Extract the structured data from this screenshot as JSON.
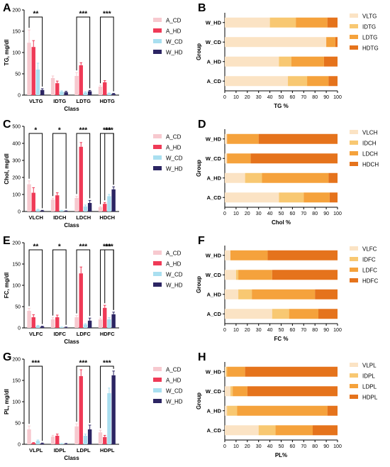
{
  "panels": {
    "A": {
      "letter": "A",
      "ylabel": "TG, mg/dl",
      "xlabel": "Class"
    },
    "B": {
      "letter": "B",
      "xlabel": "TG %",
      "ylabel": "Group"
    },
    "C": {
      "letter": "C",
      "ylabel": "Chol, mg/dl",
      "xlabel": "Class"
    },
    "D": {
      "letter": "D",
      "xlabel": "Chol %",
      "ylabel": "Group"
    },
    "E": {
      "letter": "E",
      "ylabel": "FC, mg/dl",
      "xlabel": "Class"
    },
    "F": {
      "letter": "F",
      "xlabel": "FC %",
      "ylabel": "Group"
    },
    "G": {
      "letter": "G",
      "ylabel": "PL, mg/dl",
      "xlabel": "Class"
    },
    "H": {
      "letter": "H",
      "xlabel": "PL%",
      "ylabel": "Group"
    }
  },
  "colors": {
    "A_CD": "#f7c9cf",
    "A_HD": "#ef3a57",
    "W_CD": "#a9dff0",
    "W_HD": "#2c2563",
    "stack1": "#fbe3c4",
    "stack2": "#f8c872",
    "stack3": "#f5a23c",
    "stack4": "#e5731c"
  },
  "chart_data": [
    {
      "panel": "A",
      "type": "bar",
      "xlabel": "Class",
      "ylabel": "TG, mg/dl",
      "ylim": [
        0,
        200
      ],
      "yticks": [
        0,
        50,
        100,
        150,
        200
      ],
      "categories": [
        "VLTG",
        "IDTG",
        "LDTG",
        "HDTG"
      ],
      "series": [
        {
          "name": "A_CD",
          "values": [
            123,
            40,
            45,
            20
          ],
          "errors": [
            30,
            5,
            8,
            3
          ]
        },
        {
          "name": "A_HD",
          "values": [
            113,
            28,
            70,
            30
          ],
          "errors": [
            15,
            5,
            6,
            4
          ]
        },
        {
          "name": "W_CD",
          "values": [
            60,
            8,
            6,
            4
          ],
          "errors": [
            15,
            2,
            2,
            1
          ]
        },
        {
          "name": "W_HD",
          "values": [
            12,
            7,
            9,
            3
          ],
          "errors": [
            3,
            2,
            2,
            1
          ]
        }
      ],
      "significance": [
        {
          "cat": 0,
          "label": "**"
        },
        {
          "cat": 2,
          "label": "***"
        },
        {
          "cat": 3,
          "label": "***"
        }
      ]
    },
    {
      "panel": "B",
      "type": "bar",
      "orientation": "horizontal",
      "stacked": true,
      "xlabel": "TG %",
      "ylabel": "Group",
      "xlim": [
        0,
        100
      ],
      "xticks": [
        0,
        10,
        20,
        30,
        40,
        50,
        60,
        70,
        80,
        90,
        100
      ],
      "categories": [
        "W_HD",
        "W_CD",
        "A_HD",
        "A_CD"
      ],
      "series": [
        {
          "name": "VLTG",
          "values": [
            40,
            90,
            48,
            56
          ]
        },
        {
          "name": "IDTG",
          "values": [
            23,
            0,
            11,
            17
          ]
        },
        {
          "name": "LDTG",
          "values": [
            28,
            8,
            29,
            19
          ]
        },
        {
          "name": "HDTG",
          "values": [
            9,
            2,
            12,
            8
          ]
        }
      ]
    },
    {
      "panel": "C",
      "type": "bar",
      "xlabel": "Class",
      "ylabel": "Chol, mg/dl",
      "ylim": [
        0,
        500
      ],
      "yticks": [
        0,
        100,
        200,
        300,
        400,
        500
      ],
      "categories": [
        "VLCH",
        "IDCH",
        "LDCH",
        "HDCH"
      ],
      "series": [
        {
          "name": "A_CD",
          "values": [
            160,
            70,
            80,
            25
          ],
          "errors": [
            20,
            8,
            10,
            5
          ]
        },
        {
          "name": "A_HD",
          "values": [
            110,
            95,
            380,
            45
          ],
          "errors": [
            30,
            15,
            25,
            8
          ]
        },
        {
          "name": "W_CD",
          "values": [
            10,
            5,
            30,
            90
          ],
          "errors": [
            3,
            2,
            8,
            10
          ]
        },
        {
          "name": "W_HD",
          "values": [
            5,
            3,
            50,
            130
          ],
          "errors": [
            2,
            1,
            15,
            15
          ]
        }
      ],
      "significance": [
        {
          "cat": 0,
          "label": "*"
        },
        {
          "cat": 1,
          "label": "*"
        },
        {
          "cat": 2,
          "label": "***"
        },
        {
          "cat": 3,
          "label": "***"
        },
        {
          "cat": 3.5,
          "label": "***"
        }
      ]
    },
    {
      "panel": "D",
      "type": "bar",
      "orientation": "horizontal",
      "stacked": true,
      "xlabel": "Chol %",
      "ylabel": "Group",
      "xlim": [
        0,
        100
      ],
      "xticks": [
        0,
        10,
        20,
        30,
        40,
        50,
        60,
        70,
        80,
        90,
        100
      ],
      "categories": [
        "W_HD",
        "W_CD",
        "A_HD",
        "A_CD"
      ],
      "series": [
        {
          "name": "VLCH",
          "values": [
            2,
            2,
            18,
            48
          ]
        },
        {
          "name": "IDCH",
          "values": [
            0,
            0,
            15,
            22
          ]
        },
        {
          "name": "LDCH",
          "values": [
            28,
            21,
            59,
            23
          ]
        },
        {
          "name": "HDCH",
          "values": [
            70,
            77,
            8,
            7
          ]
        }
      ]
    },
    {
      "panel": "E",
      "type": "bar",
      "xlabel": "Class",
      "ylabel": "FC, mg/dl",
      "ylim": [
        0,
        200
      ],
      "yticks": [
        0,
        50,
        100,
        150,
        200
      ],
      "categories": [
        "VLFC",
        "IDFC",
        "LDFC",
        "HDFC"
      ],
      "series": [
        {
          "name": "A_CD",
          "values": [
            40,
            20,
            25,
            20
          ],
          "errors": [
            6,
            4,
            4,
            3
          ]
        },
        {
          "name": "A_HD",
          "values": [
            25,
            25,
            128,
            47
          ],
          "errors": [
            6,
            5,
            15,
            6
          ]
        },
        {
          "name": "W_CD",
          "values": [
            5,
            1,
            8,
            20
          ],
          "errors": [
            1,
            1,
            2,
            4
          ]
        },
        {
          "name": "W_HD",
          "values": [
            3,
            1,
            17,
            32
          ],
          "errors": [
            1,
            1,
            6,
            5
          ]
        }
      ],
      "significance": [
        {
          "cat": 0,
          "label": "**"
        },
        {
          "cat": 1,
          "label": "*"
        },
        {
          "cat": 2,
          "label": "***"
        },
        {
          "cat": 3,
          "label": "***"
        },
        {
          "cat": 3.5,
          "label": "***"
        }
      ]
    },
    {
      "panel": "F",
      "type": "bar",
      "orientation": "horizontal",
      "stacked": true,
      "xlabel": "FC %",
      "ylabel": "Group",
      "xlim": [
        0,
        100
      ],
      "xticks": [
        0,
        10,
        20,
        30,
        40,
        50,
        60,
        70,
        80,
        90,
        100
      ],
      "categories": [
        "W_HD",
        "W_CD",
        "A_HD",
        "A_CD"
      ],
      "series": [
        {
          "name": "VLFC",
          "values": [
            5,
            10,
            12,
            42
          ]
        },
        {
          "name": "IDFC",
          "values": [
            0,
            2,
            12,
            15
          ]
        },
        {
          "name": "LDFC",
          "values": [
            33,
            30,
            56,
            26
          ]
        },
        {
          "name": "HDFC",
          "values": [
            62,
            58,
            20,
            17
          ]
        }
      ]
    },
    {
      "panel": "G",
      "type": "bar",
      "xlabel": "Class",
      "ylabel": "PL, mg/dl",
      "ylim": [
        0,
        200
      ],
      "yticks": [
        0,
        50,
        100,
        150,
        200
      ],
      "categories": [
        "VLPL",
        "IDPL",
        "LDPL",
        "HDPL"
      ],
      "series": [
        {
          "name": "A_CD",
          "values": [
            35,
            18,
            42,
            28
          ],
          "errors": [
            8,
            3,
            6,
            5
          ]
        },
        {
          "name": "A_HD",
          "values": [
            3,
            20,
            160,
            17
          ],
          "errors": [
            1,
            4,
            15,
            4
          ]
        },
        {
          "name": "W_CD",
          "values": [
            8,
            1,
            20,
            120
          ],
          "errors": [
            2,
            1,
            4,
            12
          ]
        },
        {
          "name": "W_HD",
          "values": [
            2,
            1,
            35,
            162
          ],
          "errors": [
            1,
            1,
            10,
            10
          ]
        }
      ],
      "significance": [
        {
          "cat": 0,
          "label": "***"
        },
        {
          "cat": 2,
          "label": "***"
        },
        {
          "cat": 3,
          "label": "***"
        }
      ]
    },
    {
      "panel": "H",
      "type": "bar",
      "orientation": "horizontal",
      "stacked": true,
      "xlabel": "PL%",
      "ylabel": "Group",
      "xlim": [
        0,
        100
      ],
      "xticks": [
        0,
        10,
        20,
        30,
        40,
        50,
        60,
        70,
        80,
        90,
        100
      ],
      "categories": [
        "W_HD",
        "W_CD",
        "A_HD",
        "A_CD"
      ],
      "series": [
        {
          "name": "VLPL",
          "values": [
            1,
            5,
            2,
            30
          ]
        },
        {
          "name": "IDPL",
          "values": [
            1,
            2,
            9,
            15
          ]
        },
        {
          "name": "LDPL",
          "values": [
            16,
            13,
            80,
            33
          ]
        },
        {
          "name": "HDPL",
          "values": [
            82,
            80,
            9,
            22
          ]
        }
      ]
    }
  ]
}
